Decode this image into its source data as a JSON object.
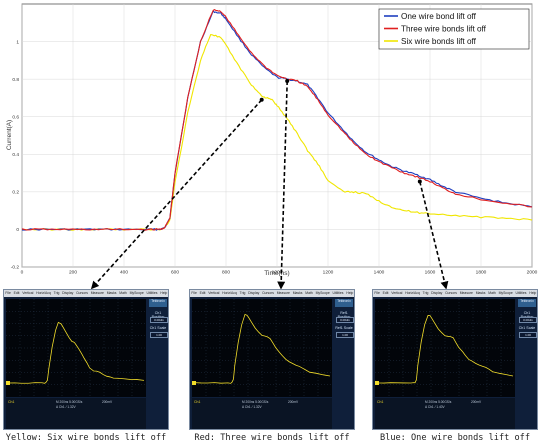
{
  "chart_data": {
    "type": "line",
    "title": "",
    "xlabel": "Time(ns)",
    "ylabel": "Current(A)",
    "xlim": [
      0,
      2000
    ],
    "ylim": [
      -0.2,
      1.2
    ],
    "xticks": [
      0,
      200,
      400,
      600,
      800,
      1000,
      1200,
      1400,
      1600,
      1800,
      2000
    ],
    "yticks": [
      -0.2,
      0,
      0.2,
      0.4,
      0.6,
      0.8,
      1
    ],
    "grid": true,
    "legend_position": "top-right",
    "series": [
      {
        "name": "One wire bond lift off",
        "color": "#1f3fbf",
        "x": [
          0,
          100,
          200,
          300,
          400,
          500,
          540,
          560,
          580,
          600,
          650,
          700,
          750,
          780,
          800,
          850,
          900,
          950,
          1000,
          1040,
          1080,
          1120,
          1160,
          1200,
          1260,
          1300,
          1350,
          1400,
          1450,
          1500,
          1550,
          1600,
          1650,
          1700,
          1800,
          1900,
          2000
        ],
        "y": [
          0.0,
          0.0,
          0.0,
          0.0,
          0.0,
          0.0,
          0.0,
          0.01,
          0.06,
          0.3,
          0.7,
          1.0,
          1.16,
          1.15,
          1.12,
          1.02,
          0.93,
          0.86,
          0.81,
          0.8,
          0.79,
          0.77,
          0.7,
          0.62,
          0.53,
          0.47,
          0.41,
          0.37,
          0.335,
          0.31,
          0.29,
          0.265,
          0.23,
          0.2,
          0.165,
          0.14,
          0.12
        ]
      },
      {
        "name": "Three wire bonds lift off",
        "color": "#e02020",
        "x": [
          0,
          100,
          200,
          300,
          400,
          500,
          540,
          560,
          580,
          600,
          650,
          700,
          750,
          780,
          800,
          850,
          900,
          950,
          1000,
          1040,
          1080,
          1120,
          1160,
          1200,
          1260,
          1300,
          1350,
          1400,
          1450,
          1500,
          1550,
          1600,
          1650,
          1700,
          1800,
          1900,
          2000
        ],
        "y": [
          0.0,
          0.0,
          0.0,
          0.0,
          0.0,
          0.0,
          0.0,
          0.01,
          0.06,
          0.3,
          0.7,
          1.0,
          1.17,
          1.16,
          1.13,
          1.03,
          0.94,
          0.87,
          0.82,
          0.8,
          0.79,
          0.76,
          0.69,
          0.61,
          0.52,
          0.46,
          0.4,
          0.36,
          0.33,
          0.3,
          0.28,
          0.255,
          0.22,
          0.19,
          0.16,
          0.14,
          0.12
        ]
      },
      {
        "name": "Six wire bonds lift off",
        "color": "#f0e600",
        "x": [
          0,
          100,
          200,
          300,
          400,
          500,
          540,
          560,
          580,
          600,
          650,
          700,
          740,
          780,
          800,
          850,
          900,
          940,
          960,
          980,
          1000,
          1040,
          1080,
          1120,
          1160,
          1200,
          1260,
          1300,
          1350,
          1400,
          1450,
          1500,
          1550,
          1600,
          1700,
          1800,
          1900,
          2000
        ],
        "y": [
          0.0,
          0.0,
          0.0,
          0.0,
          0.0,
          0.0,
          0.0,
          0.01,
          0.05,
          0.25,
          0.62,
          0.9,
          1.04,
          1.02,
          0.98,
          0.87,
          0.77,
          0.71,
          0.7,
          0.69,
          0.66,
          0.59,
          0.51,
          0.42,
          0.35,
          0.26,
          0.2,
          0.2,
          0.19,
          0.15,
          0.12,
          0.1,
          0.09,
          0.085,
          0.075,
          0.065,
          0.06,
          0.05
        ]
      }
    ]
  },
  "scopes": [
    {
      "caption": "Yellow: Six wire bonds lift off",
      "menu": [
        "File",
        "Edit",
        "Vertical",
        "Horiz/Acq",
        "Trig",
        "Display",
        "Cursors",
        "Measure",
        "Masks",
        "Math",
        "MyScope",
        "Utilities",
        "Help"
      ],
      "side_title": "Ch1 Position",
      "side_value": "0.00div",
      "side_title2": "Ch1 Scale",
      "side_value2": "1.00",
      "badge": "Tektronix",
      "footer_ch": "Ch1",
      "footer_mid": "M 200ns 5.00GS/s",
      "footer_mid2": "A Ch1 / 1.32V",
      "footer_rt": "200mV"
    },
    {
      "caption": "Red: Three wire bonds lift off",
      "menu": [
        "File",
        "Edit",
        "Vertical",
        "Horiz/Acq",
        "Trig",
        "Display",
        "Cursors",
        "Measure",
        "Masks",
        "Math",
        "MyScope",
        "Utilities",
        "Help"
      ],
      "side_title": "Ref1 Position",
      "side_value": "0.00div",
      "side_title2": "Ref1 Scale",
      "side_value2": "1.00",
      "badge": "Tektronix",
      "footer_ch": "Ch1",
      "footer_mid": "M 200ns 5.00GS/s",
      "footer_mid2": "A Ch1 / 1.32V",
      "footer_rt": "200mV"
    },
    {
      "caption": "Blue: One wire bonds lift off",
      "menu": [
        "File",
        "Edit",
        "Vertical",
        "Horiz/Acq",
        "Trig",
        "Display",
        "Cursors",
        "Measure",
        "Masks",
        "Math",
        "MyScope",
        "Utilities",
        "Help"
      ],
      "side_title": "Ch1 Position",
      "side_value": "0.00div",
      "side_title2": "Ch1 Scale",
      "side_value2": "1.00",
      "badge": "Tektronix",
      "footer_ch": "Ch1",
      "footer_mid": "M 200ns 5.00GS/s",
      "footer_mid2": "A Ch1 / 1.40V",
      "footer_rt": "200mV"
    }
  ]
}
